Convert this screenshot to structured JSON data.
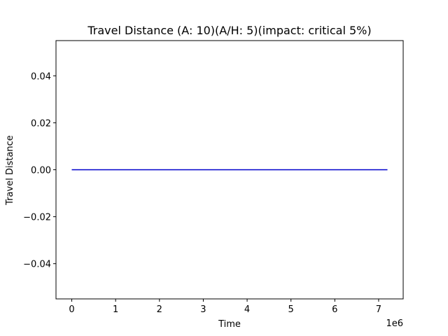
{
  "chart_data": {
    "type": "line",
    "title": "Travel Distance (A: 10)(A/H: 5)(impact: critical 5%)",
    "xlabel": "Time",
    "ylabel": "Travel Distance",
    "x_offset_label": "1e6",
    "xlim": [
      -0.36,
      7.56
    ],
    "ylim": [
      -0.055,
      0.055
    ],
    "x_ticks": [
      0,
      1,
      2,
      3,
      4,
      5,
      6,
      7
    ],
    "y_ticks": [
      -0.04,
      -0.02,
      0.0,
      0.02,
      0.04
    ],
    "x_tick_labels": [
      "0",
      "1",
      "2",
      "3",
      "4",
      "5",
      "6",
      "7"
    ],
    "y_tick_labels": [
      "−0.04",
      "−0.02",
      "0.00",
      "0.02",
      "0.04"
    ],
    "grid": false,
    "series": [
      {
        "color": "#0000cc",
        "x": [
          0,
          7.2
        ],
        "y": [
          0,
          0
        ]
      }
    ]
  }
}
